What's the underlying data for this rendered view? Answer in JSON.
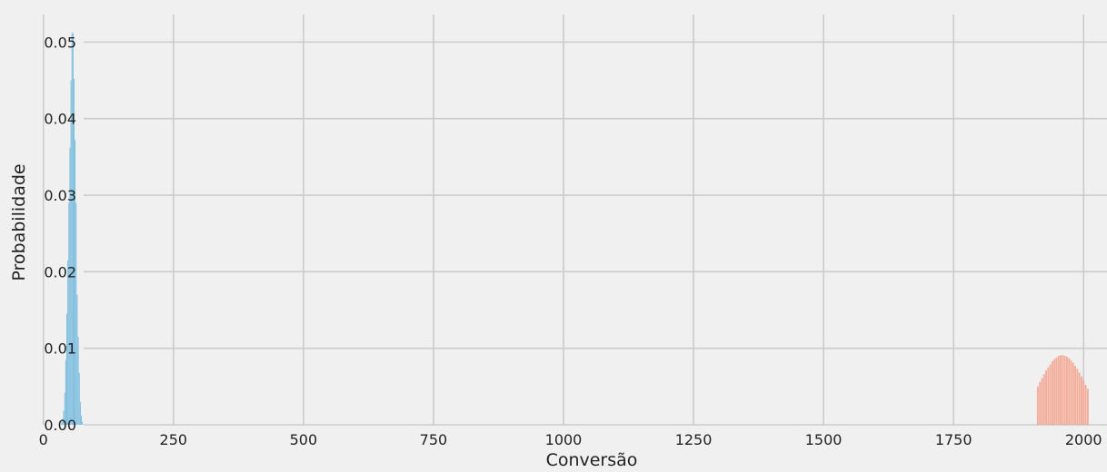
{
  "chart_data": {
    "type": "bar",
    "title": "",
    "xlabel": "Conversão",
    "ylabel": "Probabilidade",
    "xlim": [
      -45,
      2045
    ],
    "ylim": [
      0,
      0.0555
    ],
    "xticks": [
      0,
      250,
      500,
      750,
      1000,
      1250,
      1500,
      1750,
      2000
    ],
    "xtick_labels": [
      "0",
      "250",
      "500",
      "750",
      "1000",
      "1250",
      "1500",
      "1750",
      "2000"
    ],
    "yticks": [
      0,
      0.01,
      0.02,
      0.03,
      0.04,
      0.05
    ],
    "ytick_labels": [
      "0.00",
      "0.01",
      "0.02",
      "0.03",
      "0.04",
      "0.05"
    ],
    "grid": true,
    "colors": {
      "background": "#f0f0f0",
      "grid": "#cbcbcb",
      "series_1": "#6db6dc",
      "series_2": "#f2a590"
    },
    "series": [
      {
        "color": "#6db6dc",
        "x": [
          35,
          37,
          39,
          41,
          43,
          45,
          47,
          49,
          51,
          53,
          55,
          57,
          59,
          61,
          63,
          65,
          67,
          69,
          71,
          73,
          75
        ],
        "values": [
          0.0003,
          0.0008,
          0.0018,
          0.0042,
          0.0085,
          0.0145,
          0.0215,
          0.029,
          0.0362,
          0.045,
          0.0512,
          0.0512,
          0.0452,
          0.0372,
          0.029,
          0.017,
          0.0115,
          0.0068,
          0.003,
          0.0012,
          0.0004
        ]
      },
      {
        "color": "#f2a590",
        "x": [
          1912,
          1916,
          1920,
          1924,
          1928,
          1932,
          1936,
          1940,
          1944,
          1948,
          1952,
          1956,
          1960,
          1964,
          1968,
          1972,
          1976,
          1980,
          1984,
          1988,
          1992,
          1996,
          2000,
          2004,
          2008
        ],
        "values": [
          0.005,
          0.0056,
          0.0061,
          0.0066,
          0.0071,
          0.0075,
          0.0079,
          0.0083,
          0.0086,
          0.0088,
          0.009,
          0.0091,
          0.0091,
          0.009,
          0.0089,
          0.0087,
          0.0084,
          0.0081,
          0.0077,
          0.0073,
          0.0068,
          0.0063,
          0.0058,
          0.0052,
          0.0047
        ]
      }
    ]
  }
}
